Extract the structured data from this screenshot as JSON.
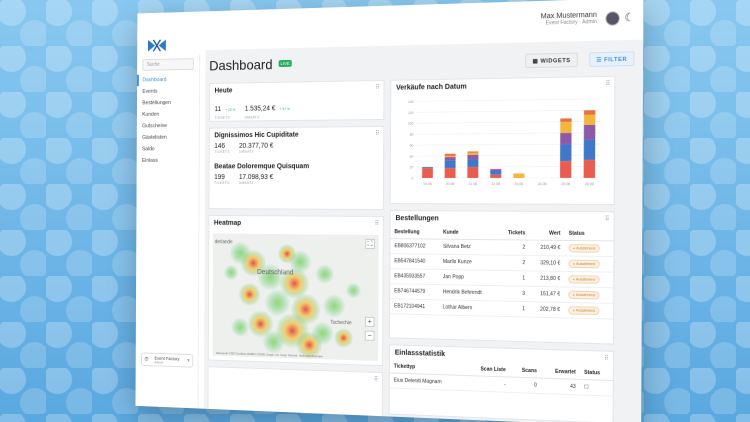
{
  "user": {
    "name": "Max Mustermann",
    "role": "Event Factory · Admin"
  },
  "sidebar": {
    "search_placeholder": "Suche",
    "items": [
      {
        "label": "Dashboard",
        "active": true
      },
      {
        "label": "Events"
      },
      {
        "label": "Bestellungen"
      },
      {
        "label": "Kunden"
      },
      {
        "label": "Gutscheine"
      },
      {
        "label": "Gästelisten"
      },
      {
        "label": "Saldo"
      },
      {
        "label": "Einlass"
      }
    ],
    "org": {
      "name": "Event Factory",
      "sub": "Admin"
    }
  },
  "header": {
    "title": "Dashboard",
    "badge": "LIVE",
    "widgets_label": "WIDGETS",
    "filter_label": "FILTER"
  },
  "heute": {
    "title": "Heute",
    "tickets": "11",
    "tickets_delta": "+ 22 %",
    "tickets_cap": "TICKETS",
    "umsatz": "1.535,24 €",
    "umsatz_delta": "+ 47 %",
    "umsatz_cap": "UMSATZ"
  },
  "events": [
    {
      "title": "Dignissimos Hic Cupiditate",
      "tickets": "146",
      "umsatz": "20.377,70 €",
      "tickets_cap": "TICKETS",
      "umsatz_cap": "UMSATZ"
    },
    {
      "title": "Beatae Doloremque Quisquam",
      "tickets": "199",
      "umsatz": "17.098,93 €",
      "tickets_cap": "TICKETS",
      "umsatz_cap": "UMSATZ"
    }
  ],
  "heatmap": {
    "title": "Heatmap",
    "labels": {
      "a": "derlande",
      "b": "Deutschland",
      "c": "Tschechie"
    },
    "attribution": "Datenquelle ©2019 GeoBasis-DE/BKG (©2009), Google, Inst. Geogr. Nacional · Nutzungsbedingungen"
  },
  "chart_data": {
    "type": "bar",
    "title": "Verkäufe nach Datum",
    "categories": [
      "19.06",
      "20.06",
      "21.06",
      "22.06",
      "23.06",
      "24.06",
      "25.06",
      "26.06"
    ],
    "ylim": [
      0,
      140
    ],
    "yticks": [
      0,
      20,
      40,
      60,
      80,
      100,
      120,
      140
    ],
    "series": [
      {
        "color": "#e85d4f",
        "values": [
          18,
          18,
          20,
          6,
          0,
          0,
          30,
          32
        ]
      },
      {
        "color": "#3f78c8",
        "values": [
          2,
          14,
          14,
          6,
          0,
          0,
          30,
          36
        ]
      },
      {
        "color": "#8e5aa8",
        "values": [
          0,
          6,
          8,
          4,
          0,
          0,
          20,
          26
        ]
      },
      {
        "color": "#f2b63d",
        "values": [
          0,
          2,
          4,
          0,
          8,
          0,
          20,
          18
        ]
      },
      {
        "color": "#e8703a",
        "values": [
          0,
          4,
          2,
          0,
          0,
          0,
          6,
          8
        ]
      }
    ]
  },
  "bestellungen": {
    "title": "Bestellungen",
    "columns": [
      "Bestellung",
      "Kunde",
      "Tickets",
      "Wert",
      "Status"
    ],
    "rows": [
      [
        "EB806377102",
        "Silvana Betz",
        "2",
        "210,49 €",
        "Ausstehend"
      ],
      [
        "EB547841540",
        "Marlis Kunze",
        "2",
        "329,10 €",
        "Ausstehend"
      ],
      [
        "EB435933557",
        "Jan Popp",
        "1",
        "213,80 €",
        "Ausstehend"
      ],
      [
        "EB746744579",
        "Hendrik Behrendt",
        "3",
        "151,47 €",
        "Ausstehend"
      ],
      [
        "EB172104941",
        "Lothar Albers",
        "1",
        "202,78 €",
        "Ausstehend"
      ]
    ]
  },
  "einlass": {
    "title": "Einlassstatistik",
    "columns": [
      "Tickettyp",
      "Scan Liste",
      "Scans",
      "Erwartet",
      "Status"
    ],
    "rows": [
      [
        "Eius Deleniti Magnam",
        "-",
        "0",
        "43",
        "☐"
      ]
    ]
  }
}
